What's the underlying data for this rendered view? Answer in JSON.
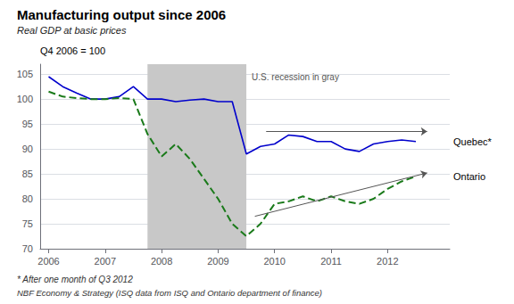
{
  "chart_data": {
    "type": "line",
    "title": "Manufacturing output since 2006",
    "subtitle": "Real GDP at basic prices",
    "ylabel_note": "Q4 2006 = 100",
    "footnotes": [
      "* After one month of Q3 2012",
      "NBF Economy & Strategy (ISQ data from ISQ and Ontario department of finance)"
    ],
    "x": [
      2006.0,
      2006.25,
      2006.5,
      2006.75,
      2007.0,
      2007.25,
      2007.5,
      2007.75,
      2008.0,
      2008.25,
      2008.5,
      2008.75,
      2009.0,
      2009.25,
      2009.5,
      2009.75,
      2010.0,
      2010.25,
      2010.5,
      2010.75,
      2011.0,
      2011.25,
      2011.5,
      2011.75,
      2012.0,
      2012.25,
      2012.5
    ],
    "series": [
      {
        "name": "Quebec*",
        "color": "#0000cc",
        "line_style": "solid",
        "values": [
          104.5,
          102.5,
          101.2,
          100.0,
          100.0,
          100.5,
          102.5,
          100.0,
          100.0,
          99.5,
          99.8,
          100.0,
          99.5,
          99.5,
          89.0,
          90.5,
          91.0,
          92.8,
          92.5,
          91.5,
          91.5,
          90.0,
          89.5,
          91.0,
          91.5,
          91.8,
          91.5
        ]
      },
      {
        "name": "Ontario",
        "color": "#1a7a1a",
        "line_style": "dashed",
        "values": [
          101.5,
          100.5,
          100.2,
          100.0,
          100.0,
          100.2,
          100.0,
          93.0,
          88.5,
          91.0,
          88.0,
          84.0,
          80.0,
          75.0,
          72.5,
          75.0,
          79.0,
          79.5,
          80.5,
          79.5,
          80.5,
          79.5,
          79.0,
          80.0,
          82.0,
          83.5,
          84.5
        ]
      }
    ],
    "recession": {
      "start": 2007.75,
      "end": 2009.5,
      "color": "#c8c8c8",
      "label": "U.S. recession in gray"
    },
    "arrows": [
      {
        "x_start": 2009.85,
        "y_start": 93.5,
        "x_end": 2012.7,
        "y_end": 93.5
      },
      {
        "x_start": 2009.65,
        "y_start": 76.5,
        "x_end": 2012.7,
        "y_end": 85.2
      }
    ],
    "xlim": [
      2005.85,
      2013.1
    ],
    "ylim": [
      70,
      107
    ],
    "xticks": [
      2006,
      2007,
      2008,
      2009,
      2010,
      2011,
      2012
    ],
    "yticks": [
      70,
      75,
      80,
      85,
      90,
      95,
      100,
      105
    ],
    "grid": true
  }
}
